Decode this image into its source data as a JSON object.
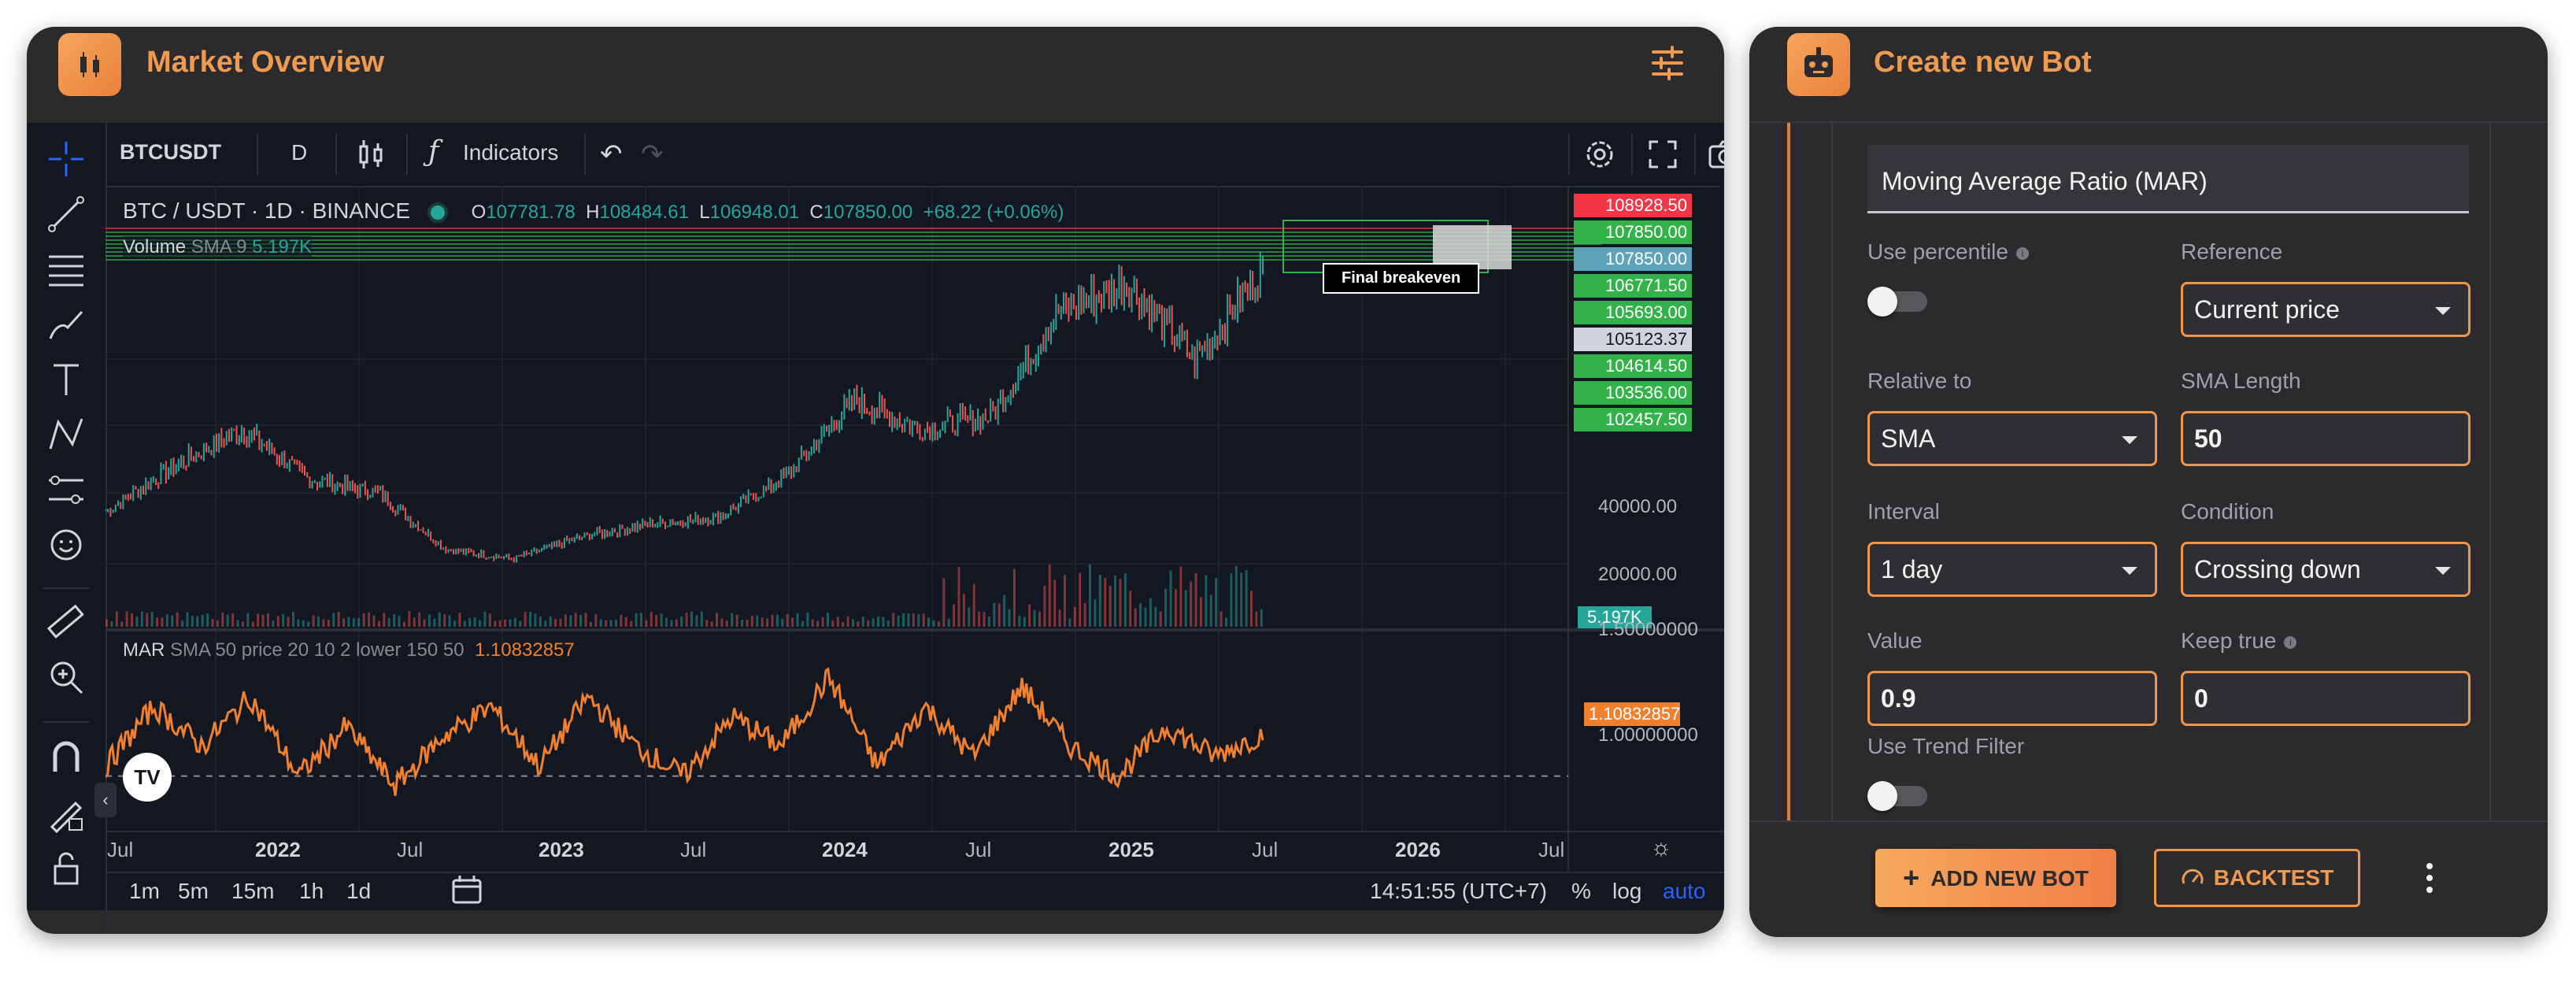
{
  "market": {
    "title": "Market Overview",
    "toolbar": {
      "symbol": "BTCUSDT",
      "interval": "D",
      "indicators_label": "Indicators"
    },
    "legend": {
      "pair": "BTC / USDT · 1D · BINANCE",
      "o_label": "O",
      "o_value": "107781.78",
      "h_label": "H",
      "h_value": "108484.61",
      "l_label": "L",
      "l_value": "106948.01",
      "c_label": "C",
      "c_value": "107850.00",
      "change": "+68.22 (+0.06%)"
    },
    "volume_legend": {
      "name": "Volume",
      "sma": "SMA 9",
      "value": "5.197K"
    },
    "annotation": "Final breakeven",
    "price_tags": [
      {
        "value": "108928.50",
        "color": "#f23645",
        "text_color": "#ffffff"
      },
      {
        "value": "107850.00",
        "color": "#33b249",
        "text_color": "#ffffff"
      },
      {
        "value": "107850.00",
        "color": "#5ea4b8",
        "text_color": "#ffffff"
      },
      {
        "value": "106771.50",
        "color": "#33b249",
        "text_color": "#ffffff"
      },
      {
        "value": "105693.00",
        "color": "#33b249",
        "text_color": "#ffffff"
      },
      {
        "value": "105123.37",
        "color": "#d1d4dc",
        "text_color": "#131722"
      },
      {
        "value": "104614.50",
        "color": "#33b249",
        "text_color": "#ffffff"
      },
      {
        "value": "103536.00",
        "color": "#33b249",
        "text_color": "#ffffff"
      },
      {
        "value": "102457.50",
        "color": "#33b249",
        "text_color": "#ffffff"
      }
    ],
    "price_axis": [
      "40000.00",
      "20000.00"
    ],
    "volume_tag": "5.197K",
    "mar_legend": {
      "name": "MAR",
      "params": "SMA 50 price 20 10 2 lower 150 50",
      "value": "1.10832857"
    },
    "mar_axis": [
      "1.50000000",
      "1.00000000"
    ],
    "mar_tag": "1.10832857",
    "time_axis": [
      "Jul",
      "2022",
      "Jul",
      "2023",
      "Jul",
      "2024",
      "Jul",
      "2025",
      "Jul",
      "2026",
      "Jul"
    ],
    "footer": {
      "ranges": [
        "1m",
        "5m",
        "15m",
        "1h",
        "1d"
      ],
      "clock": "14:51:55 (UTC+7)",
      "percent": "%",
      "log": "log",
      "auto": "auto"
    },
    "colors": {
      "accent": "#f09a4f",
      "up": "#26a69a",
      "down": "#ef5350",
      "mar": "#f0802e",
      "green": "#33b249"
    }
  },
  "chart_data": [
    {
      "type": "line",
      "title": "",
      "series": [
        {
          "name": "BTC / USDT",
          "values": [
            32000,
            46000,
            58000,
            42000,
            38000,
            20000,
            17000,
            24000,
            28000,
            30000,
            43000,
            67000,
            58000,
            62000,
            95000,
            104000,
            80000,
            108000
          ]
        }
      ],
      "x": [
        "2021-07",
        "2021-10",
        "2021-11",
        "2022-03",
        "2022-04",
        "2022-07",
        "2022-11",
        "2023-03",
        "2023-07",
        "2023-10",
        "2024-01",
        "2024-03",
        "2024-07",
        "2024-10",
        "2024-12",
        "2025-01",
        "2025-04",
        "2025-05"
      ],
      "ylim": [
        0,
        115000
      ]
    },
    {
      "type": "line",
      "title": "",
      "series": [
        {
          "name": "MAR",
          "values": [
            0.95,
            1.25,
            1.05,
            1.3,
            0.9,
            1.15,
            0.85,
            1.1,
            1.25,
            0.95,
            1.3,
            1.05,
            0.9,
            1.2,
            1.05,
            1.4,
            0.95,
            1.25,
            1.0,
            1.35,
            1.05,
            0.9,
            1.15,
            1.0,
            1.11
          ]
        }
      ],
      "ylim": [
        0.7,
        1.55
      ]
    }
  ],
  "bot": {
    "title": "Create new Bot",
    "indicator_value": "Moving Average Ratio (MAR)",
    "use_percentile_label": "Use percentile",
    "reference_label": "Reference",
    "reference_value": "Current price",
    "relative_label": "Relative to",
    "relative_value": "SMA",
    "sma_length_label": "SMA Length",
    "sma_length_value": "50",
    "interval_label": "Interval",
    "interval_value": "1 day",
    "condition_label": "Condition",
    "condition_value": "Crossing down",
    "value_label": "Value",
    "value_value": "0.9",
    "keep_true_label": "Keep true",
    "keep_true_value": "0",
    "trend_filter_label": "Use Trend Filter",
    "add_button": "ADD NEW BOT",
    "backtest_button": "BACKTEST",
    "info_glyph": "i",
    "plus_glyph": "+"
  }
}
